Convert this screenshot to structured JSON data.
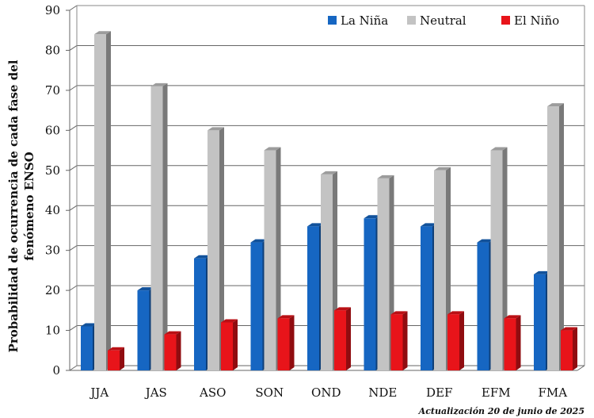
{
  "chart_data": {
    "type": "bar",
    "categories": [
      "JJA",
      "JAS",
      "ASO",
      "SON",
      "OND",
      "NDE",
      "DEF",
      "EFM",
      "FMA"
    ],
    "series": [
      {
        "name": "La Niña",
        "color": "#1666c2",
        "values": [
          11,
          20,
          28,
          32,
          36,
          38,
          36,
          32,
          24
        ]
      },
      {
        "name": "Neutral",
        "color": "#c3c3c3",
        "values": [
          84,
          71,
          60,
          55,
          49,
          48,
          50,
          55,
          66
        ]
      },
      {
        "name": "El Niño",
        "color": "#e8141a",
        "values": [
          5,
          9,
          12,
          13,
          15,
          14,
          14,
          13,
          10
        ]
      }
    ],
    "ylabel_line1": "Probabilidad de ocurrencia  de cada fase del",
    "ylabel_line2": "fenómeno ENSO",
    "ylim": [
      0,
      90
    ],
    "yticks": [
      0,
      10,
      20,
      30,
      40,
      50,
      60,
      70,
      80,
      90
    ],
    "grid": true,
    "legend_position": "top-right",
    "footnote": "Actualización 20 de junio de 2025"
  }
}
